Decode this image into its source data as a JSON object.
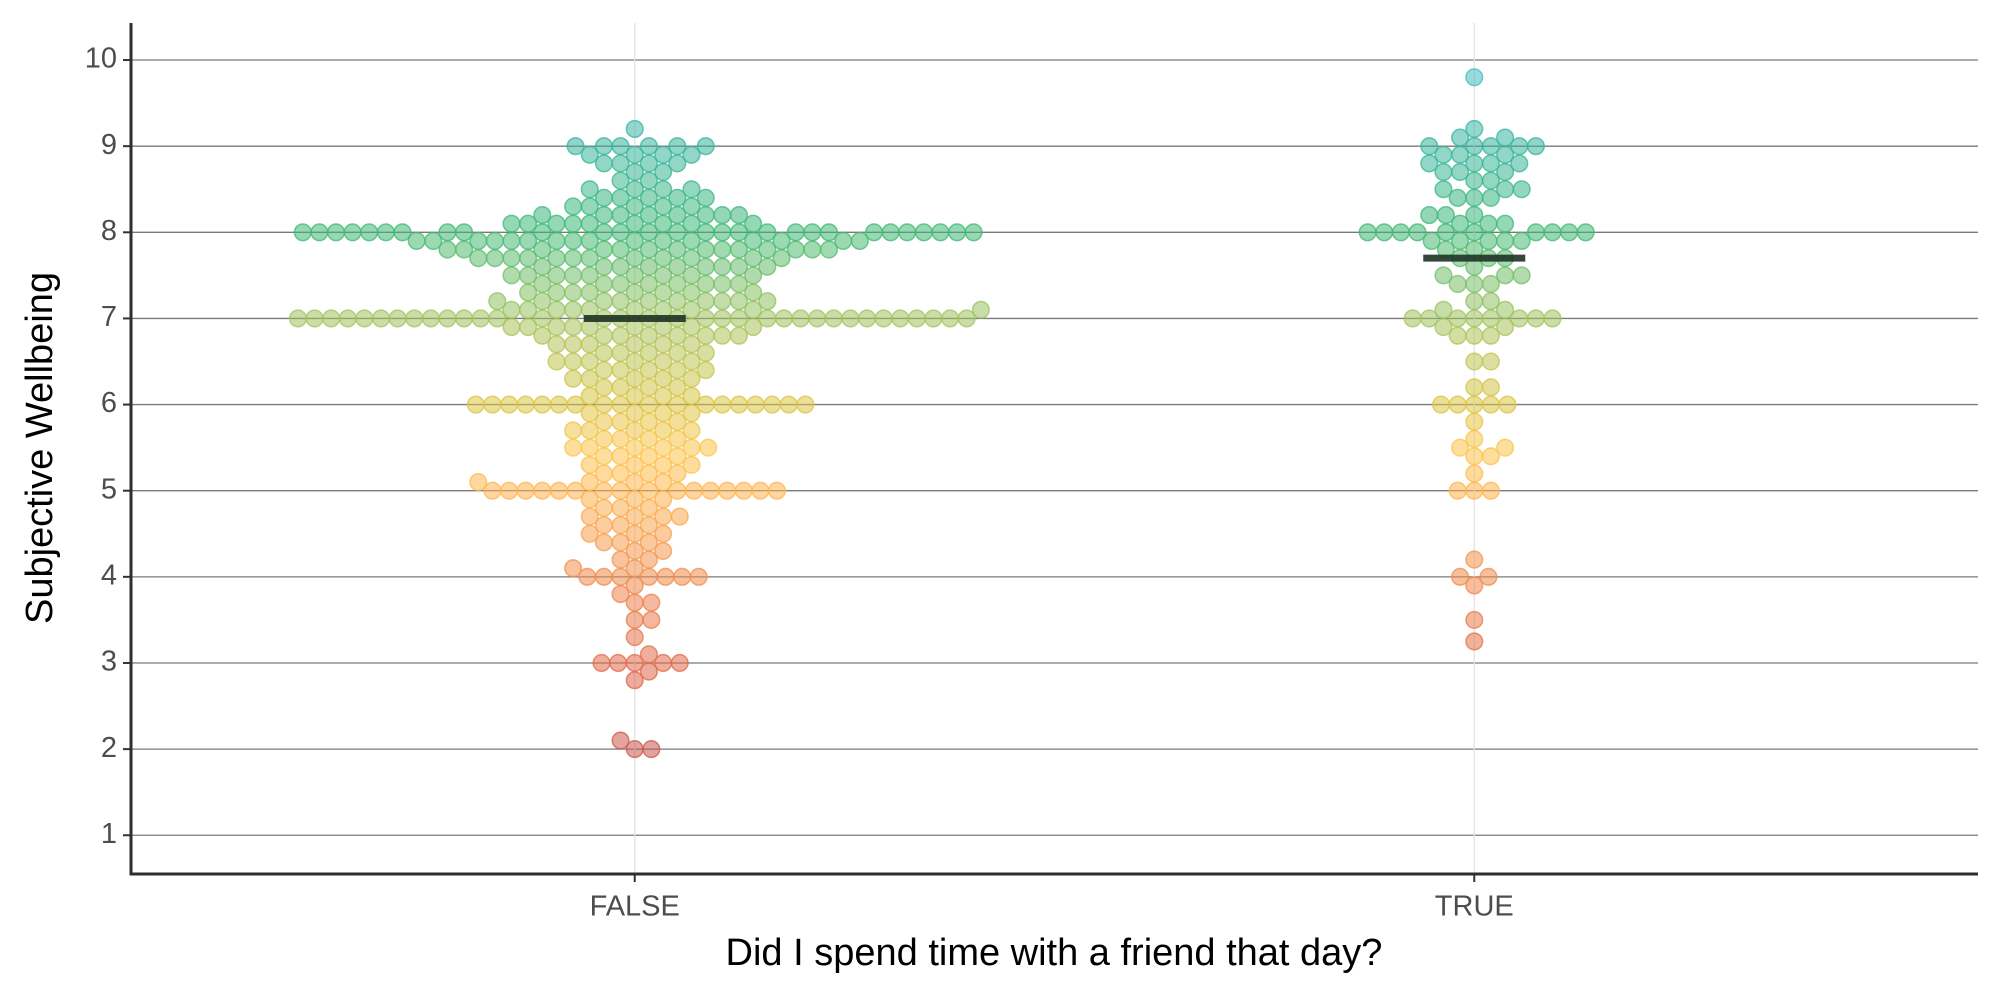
{
  "chart_data": {
    "type": "beeswarm",
    "x_label": "Did I spend time with a friend that day?",
    "y_label": "Subjective Wellbeing",
    "categories": [
      "FALSE",
      "TRUE"
    ],
    "values": [
      [
        2,
        2,
        2.1,
        2.8,
        2.9,
        3,
        3,
        3,
        3,
        3,
        3.1,
        3.3,
        3.5,
        3.5,
        3.7,
        3.7,
        3.8,
        3.9,
        4,
        4,
        4,
        4,
        4,
        4,
        4,
        4.1,
        4.1,
        4.2,
        4.2,
        4.3,
        4.3,
        4.4,
        4.4,
        4.4,
        4.5,
        4.5,
        4.5,
        4.6,
        4.6,
        4.6,
        4.7,
        4.7,
        4.7,
        4.7,
        4.8,
        4.8,
        4.8,
        4.9,
        4.9,
        4.9,
        5,
        5,
        5,
        5,
        5,
        5,
        5,
        5,
        5,
        5,
        5,
        5,
        5,
        5,
        5,
        5,
        5.1,
        5.1,
        5.1,
        5.1,
        5.2,
        5.2,
        5.2,
        5.2,
        5.3,
        5.3,
        5.3,
        5.3,
        5.4,
        5.4,
        5.4,
        5.4,
        5.5,
        5.5,
        5.5,
        5.5,
        5.5,
        5.5,
        5.6,
        5.6,
        5.6,
        5.6,
        5.7,
        5.7,
        5.7,
        5.7,
        5.7,
        5.8,
        5.8,
        5.8,
        5.8,
        5.9,
        5.9,
        5.9,
        5.9,
        6,
        6,
        6,
        6,
        6,
        6,
        6,
        6,
        6,
        6,
        6,
        6,
        6,
        6,
        6,
        6,
        6,
        6,
        6.1,
        6.1,
        6.1,
        6.1,
        6.2,
        6.2,
        6.2,
        6.2,
        6.3,
        6.3,
        6.3,
        6.3,
        6.3,
        6.4,
        6.4,
        6.4,
        6.4,
        6.4,
        6.5,
        6.5,
        6.5,
        6.5,
        6.5,
        6.5,
        6.6,
        6.6,
        6.6,
        6.6,
        6.6,
        6.7,
        6.7,
        6.7,
        6.7,
        6.7,
        6.7,
        6.8,
        6.8,
        6.8,
        6.8,
        6.8,
        6.8,
        6.8,
        6.8,
        6.9,
        6.9,
        6.9,
        6.9,
        6.9,
        6.9,
        6.9,
        6.9,
        6.9,
        7,
        7,
        7,
        7,
        7,
        7,
        7,
        7,
        7,
        7,
        7,
        7,
        7,
        7,
        7,
        7,
        7,
        7,
        7,
        7,
        7,
        7,
        7,
        7,
        7,
        7,
        7,
        7,
        7,
        7,
        7,
        7,
        7,
        7,
        7.1,
        7.1,
        7.1,
        7.1,
        7.1,
        7.1,
        7.1,
        7.1,
        7.1,
        7.1,
        7.2,
        7.2,
        7.2,
        7.2,
        7.2,
        7.2,
        7.2,
        7.2,
        7.2,
        7.2,
        7.3,
        7.3,
        7.3,
        7.3,
        7.3,
        7.3,
        7.3,
        7.3,
        7.4,
        7.4,
        7.4,
        7.4,
        7.4,
        7.4,
        7.4,
        7.4,
        7.5,
        7.5,
        7.5,
        7.5,
        7.5,
        7.5,
        7.5,
        7.5,
        7.5,
        7.6,
        7.6,
        7.6,
        7.6,
        7.6,
        7.6,
        7.6,
        7.6,
        7.6,
        7.7,
        7.7,
        7.7,
        7.7,
        7.7,
        7.7,
        7.7,
        7.7,
        7.7,
        7.7,
        7.7,
        7.7,
        7.8,
        7.8,
        7.8,
        7.8,
        7.8,
        7.8,
        7.8,
        7.8,
        7.8,
        7.8,
        7.8,
        7.8,
        7.8,
        7.8,
        7.9,
        7.9,
        7.9,
        7.9,
        7.9,
        7.9,
        7.9,
        7.9,
        7.9,
        7.9,
        7.9,
        7.9,
        7.9,
        7.9,
        7.9,
        7.9,
        8,
        8,
        8,
        8,
        8,
        8,
        8,
        8,
        8,
        8,
        8,
        8,
        8,
        8,
        8,
        8,
        8,
        8,
        8,
        8,
        8,
        8,
        8,
        8,
        8,
        8,
        8,
        8,
        8.1,
        8.1,
        8.1,
        8.1,
        8.1,
        8.1,
        8.1,
        8.1,
        8.1,
        8.2,
        8.2,
        8.2,
        8.2,
        8.2,
        8.2,
        8.2,
        8.2,
        8.3,
        8.3,
        8.3,
        8.3,
        8.3,
        8.4,
        8.4,
        8.4,
        8.4,
        8.4,
        8.5,
        8.5,
        8.5,
        8.5,
        8.6,
        8.6,
        8.7,
        8.7,
        8.8,
        8.8,
        8.8,
        8.8,
        8.9,
        8.9,
        8.9,
        8.9,
        9,
        9,
        9,
        9,
        9,
        9,
        9.2
      ],
      [
        3.25,
        3.5,
        3.9,
        4,
        4,
        4.2,
        5,
        5,
        5,
        5.2,
        5.4,
        5.4,
        5.5,
        5.5,
        5.6,
        5.8,
        6,
        6,
        6,
        6,
        6,
        6.2,
        6.2,
        6.5,
        6.5,
        6.8,
        6.8,
        6.8,
        6.9,
        6.9,
        7,
        7,
        7,
        7,
        7,
        7,
        7,
        7,
        7.1,
        7.1,
        7.2,
        7.2,
        7.4,
        7.4,
        7.4,
        7.5,
        7.5,
        7.5,
        7.6,
        7.7,
        7.7,
        7.7,
        7.8,
        7.8,
        7.9,
        7.9,
        7.9,
        7.9,
        7.9,
        8,
        8,
        8,
        8,
        8,
        8,
        8,
        8,
        8,
        8,
        8.1,
        8.1,
        8.1,
        8.2,
        8.2,
        8.2,
        8.4,
        8.4,
        8.4,
        8.5,
        8.5,
        8.5,
        8.6,
        8.6,
        8.7,
        8.7,
        8.7,
        8.8,
        8.8,
        8.8,
        8.8,
        8.9,
        8.9,
        8.9,
        9,
        9,
        9,
        9,
        9,
        9.1,
        9.1,
        9.2,
        9.8
      ]
    ],
    "medians": [
      7,
      7.7
    ],
    "median_color": "#1f3326",
    "color_stops": [
      {
        "value": 2,
        "color": "#c9584c"
      },
      {
        "value": 3,
        "color": "#e3694a"
      },
      {
        "value": 4,
        "color": "#f08c4d"
      },
      {
        "value": 5,
        "color": "#fdb54e"
      },
      {
        "value": 5.5,
        "color": "#fcc54c"
      },
      {
        "value": 6,
        "color": "#dcc443"
      },
      {
        "value": 7,
        "color": "#a3c35f"
      },
      {
        "value": 8,
        "color": "#3fb874"
      },
      {
        "value": 9,
        "color": "#36b49d"
      },
      {
        "value": 10,
        "color": "#49bdcb"
      }
    ],
    "ylim": [
      0.55,
      10.43
    ],
    "yticks": [
      1,
      2,
      3,
      4,
      5,
      6,
      7,
      8,
      9,
      10
    ],
    "grid": true
  }
}
